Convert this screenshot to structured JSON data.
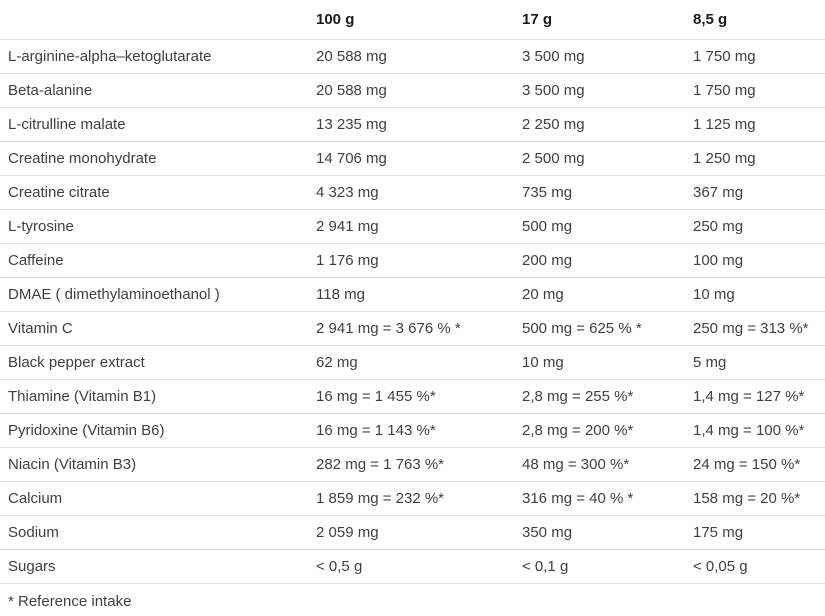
{
  "table": {
    "columns": [
      "",
      "100 g",
      "17 g",
      "8,5 g"
    ],
    "rows": [
      {
        "label": "L-arginine-alpha–ketoglutarate",
        "values": [
          "20 588 mg",
          "3 500 mg",
          "1 750 mg"
        ]
      },
      {
        "label": "Beta-alanine",
        "values": [
          "20 588 mg",
          "3 500 mg",
          "1 750 mg"
        ]
      },
      {
        "label": "L-citrulline malate",
        "values": [
          "13 235 mg",
          "2 250 mg",
          "1 125 mg"
        ]
      },
      {
        "label": "Creatine monohydrate",
        "values": [
          "14 706 mg",
          "2 500 mg",
          "1 250 mg"
        ]
      },
      {
        "label": "Creatine citrate",
        "values": [
          "4 323 mg",
          "735 mg",
          "367 mg"
        ]
      },
      {
        "label": "L-tyrosine",
        "values": [
          "2 941 mg",
          "500 mg",
          "250 mg"
        ]
      },
      {
        "label": "Caffeine",
        "values": [
          "1 176 mg",
          "200 mg",
          "100 mg"
        ]
      },
      {
        "label": "DMAE ( dimethylaminoethanol )",
        "values": [
          "118 mg",
          "20 mg",
          "10 mg"
        ]
      },
      {
        "label": "Vitamin C",
        "values": [
          "2 941 mg = 3 676 % *",
          "500 mg = 625 % *",
          "250 mg = 313 %*"
        ]
      },
      {
        "label": "Black pepper extract",
        "values": [
          "62 mg",
          "10 mg",
          "5 mg"
        ]
      },
      {
        "label": "Thiamine (Vitamin B1)",
        "values": [
          "16 mg = 1 455 %*",
          "2,8 mg = 255 %*",
          "1,4 mg = 127 %*"
        ]
      },
      {
        "label": "Pyridoxine (Vitamin B6)",
        "values": [
          "16 mg = 1 143 %*",
          "2,8 mg = 200 %*",
          "1,4 mg = 100 %*"
        ]
      },
      {
        "label": "Niacin (Vitamin B3)",
        "values": [
          "282 mg = 1 763 %*",
          "48 mg = 300 %*",
          "24 mg = 150 %*"
        ]
      },
      {
        "label": "Calcium",
        "values": [
          "1 859 mg = 232 %*",
          "316 mg = 40 % *",
          "158 mg = 20 %*"
        ]
      },
      {
        "label": "Sodium",
        "values": [
          "2 059 mg",
          "350 mg",
          "175 mg"
        ]
      },
      {
        "label": "Sugars",
        "values": [
          "< 0,5 g",
          "< 0,1 g",
          "< 0,05 g"
        ]
      }
    ],
    "footnote": "* Reference intake"
  },
  "colors": {
    "header_text": "#1a1a1a",
    "body_text": "#404040",
    "border": "#dddddd",
    "background": "#ffffff"
  }
}
